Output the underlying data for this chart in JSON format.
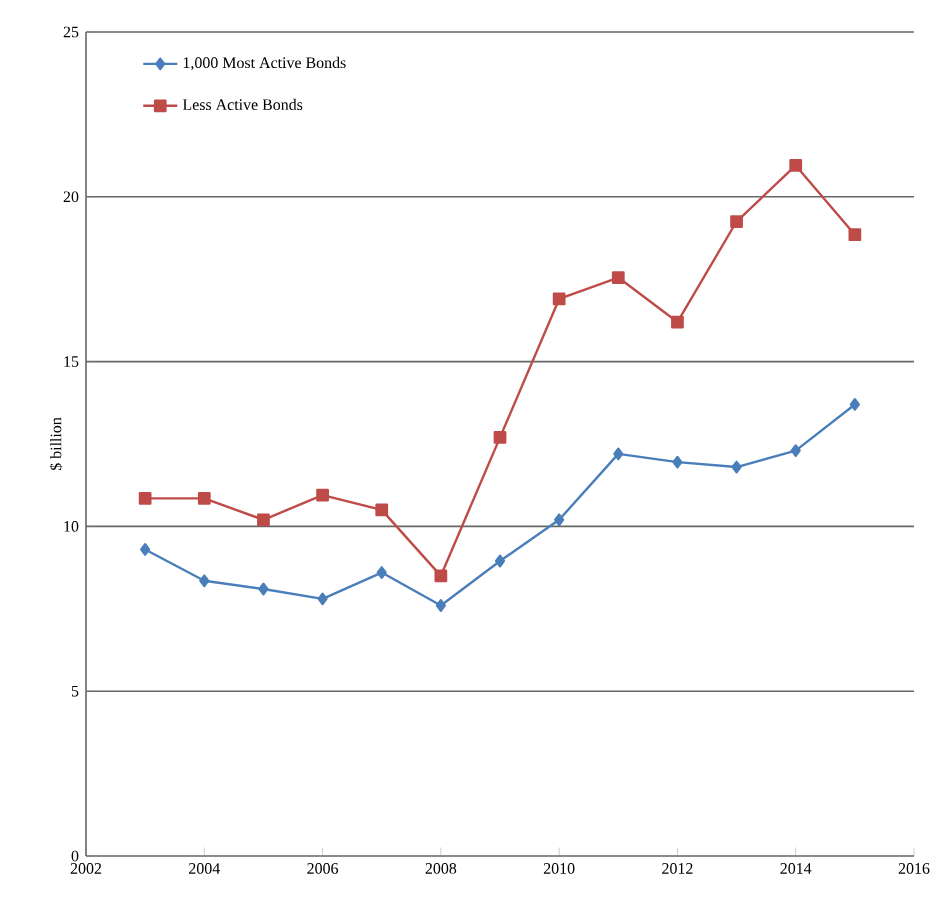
{
  "chart_data": {
    "type": "line",
    "ylabel": "$ billion",
    "x": [
      2003,
      2004,
      2005,
      2006,
      2007,
      2008,
      2009,
      2010,
      2011,
      2012,
      2013,
      2014,
      2015
    ],
    "series": [
      {
        "name": "1,000 Most Active Bonds",
        "color": "#4a7ebb",
        "marker": "diamond",
        "values": [
          9.3,
          8.35,
          8.1,
          7.8,
          8.6,
          7.6,
          8.95,
          10.2,
          12.2,
          11.95,
          11.8,
          12.3,
          13.7
        ]
      },
      {
        "name": "Less Active Bonds",
        "color": "#be4b48",
        "marker": "square",
        "values": [
          10.85,
          10.85,
          10.2,
          10.95,
          10.5,
          8.5,
          12.7,
          16.9,
          17.55,
          16.2,
          19.25,
          20.95,
          18.85
        ]
      }
    ],
    "xlim": [
      2002,
      2016
    ],
    "xticks": [
      2002,
      2004,
      2006,
      2008,
      2010,
      2012,
      2014,
      2016
    ],
    "ylim": [
      0,
      25
    ],
    "yticks": [
      0,
      5,
      10,
      15,
      20,
      25
    ],
    "grid": "y",
    "legend": "top left"
  }
}
